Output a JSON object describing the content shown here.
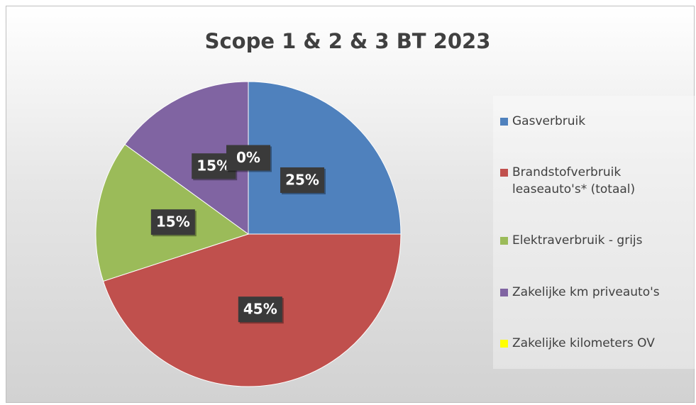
{
  "chart_data": {
    "type": "pie",
    "title": "Scope 1 & 2 & 3 BT 2023",
    "categories": [
      "Gasverbruik",
      "Brandstofverbruik leaseauto's* (totaal)",
      "Elektraverbruik - grijs",
      "Zakelijke km priveauto's",
      "Zakelijke kilometers OV"
    ],
    "values": [
      25,
      45,
      15,
      15,
      0
    ],
    "value_labels": [
      "25%",
      "45%",
      "15%",
      "15%",
      "0%"
    ],
    "colors": [
      "#4f81bd",
      "#c0504d",
      "#9bbb59",
      "#8064a2",
      "#ffff00"
    ],
    "legend": "right"
  }
}
